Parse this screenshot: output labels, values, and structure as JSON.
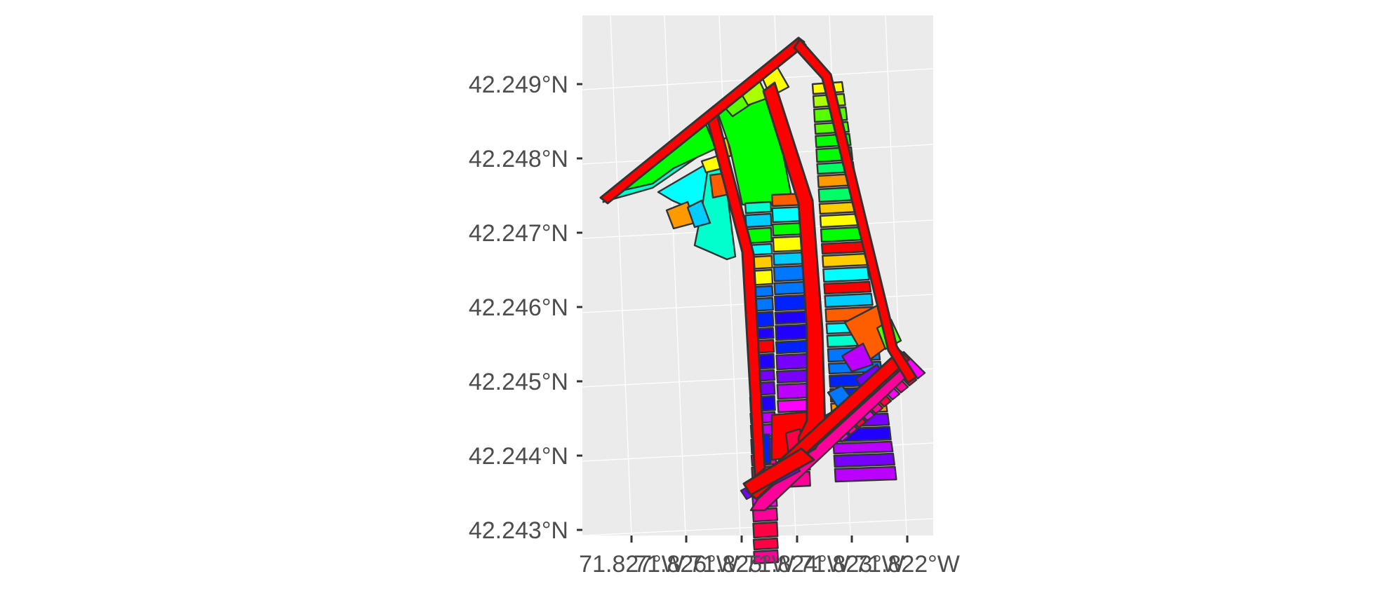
{
  "map": {
    "type": "choropleth-parcel-map",
    "panel_background": "#ebebeb",
    "grid_color": "#ffffff",
    "grid": true,
    "road_color": "#ff0000",
    "outline_color": "#333333",
    "y_axis": {
      "ticks": [
        "42.249°N",
        "42.248°N",
        "42.247°N",
        "42.246°N",
        "42.245°N",
        "42.244°N",
        "42.243°N"
      ],
      "values": [
        42.249,
        42.248,
        42.247,
        42.246,
        42.245,
        42.244,
        42.243
      ]
    },
    "x_axis": {
      "ticks": [
        "71.827°W",
        "71.826°W",
        "71.825°W",
        "71.824°W",
        "71.823°W",
        "71.822°W"
      ],
      "values": [
        -71.827,
        -71.826,
        -71.825,
        -71.824,
        -71.823,
        -71.822
      ]
    },
    "fill_palette": [
      "#ff0000",
      "#ff5e00",
      "#ff9900",
      "#ffcc00",
      "#ffff00",
      "#aaff00",
      "#55ff00",
      "#00ff00",
      "#00ff66",
      "#00ffcc",
      "#00ffff",
      "#00ccff",
      "#0077ff",
      "#0022ff",
      "#2200ff",
      "#7700ff",
      "#bb00ff",
      "#ff00ff",
      "#ff0099",
      "#ff0044"
    ]
  }
}
